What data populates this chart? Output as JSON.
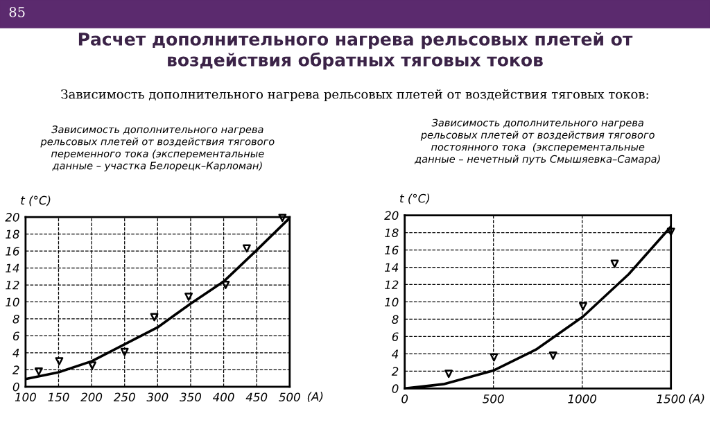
{
  "chart_data": [
    {
      "type": "line",
      "title": "Зависимость дополнительного нагрева\nрельсовых плетей от воздействия тягового\nпеременного тока (эксперементальные\nданные – участка Белорецк–Карломан)",
      "xlabel": "(A)",
      "ylabel": "t (°C)",
      "annotations": [
        "85",
        "Расчет дополнительного нагрева рельсовых плетей от\nвоздействия обратных тяговых токов",
        "Зависимость дополнительного нагрева рельсовых плетей от воздействия тяговых токов:"
      ],
      "series": [
        {
          "type": "scatter",
          "marker": "triangle",
          "color": "#000000",
          "x": [
            120,
            151,
            201,
            250,
            295,
            347,
            403,
            435,
            489
          ],
          "values": [
            1.8,
            3.0,
            2.5,
            4.1,
            8.2,
            10.6,
            12.0,
            16.3,
            19.9
          ]
        },
        {
          "marker": "none",
          "color": "#000000",
          "x": [
            100,
            150,
            200,
            250,
            300,
            350,
            400,
            450,
            500
          ],
          "values": [
            0.9,
            1.7,
            3.0,
            5.0,
            7.0,
            9.8,
            12.4,
            16.1,
            19.9
          ]
        }
      ],
      "xlim": [
        100,
        500
      ],
      "xticks": [
        100,
        150,
        200,
        250,
        300,
        350,
        400,
        450,
        500
      ],
      "ylim": [
        0,
        20
      ],
      "yticks": [
        0,
        2,
        4,
        6,
        8,
        10,
        12,
        14,
        16,
        18,
        20
      ],
      "grid": true,
      "line_style": "solid"
    },
    {
      "type": "line",
      "title": "Зависимость дополнительного нагрева\nрельсовых плетей от воздействия тягового\nпостоянного тока  (эксперементальные\nданные – нечетный путь Смышяевка–Самара)",
      "xlabel": "(A)",
      "ylabel": "t (°C)",
      "series": [
        {
          "type": "scatter",
          "marker": "triangle",
          "color": "#000000",
          "x": [
            248,
            503,
            836,
            1005,
            1183,
            1500
          ],
          "values": [
            1.7,
            3.6,
            3.8,
            9.5,
            14.4,
            18.1
          ]
        },
        {
          "marker": "none",
          "color": "#000000",
          "x": [
            0,
            218,
            503,
            740,
            1004,
            1262,
            1500
          ],
          "values": [
            0,
            0.5,
            2.1,
            4.5,
            8.3,
            13.2,
            18.7
          ]
        }
      ],
      "xlim": [
        0,
        1500
      ],
      "xticks": [
        0,
        500,
        1000,
        1500
      ],
      "ylim": [
        0,
        20
      ],
      "yticks": [
        0,
        2,
        4,
        6,
        8,
        10,
        12,
        14,
        16,
        18,
        20
      ],
      "grid": true,
      "line_style": "solid"
    }
  ]
}
